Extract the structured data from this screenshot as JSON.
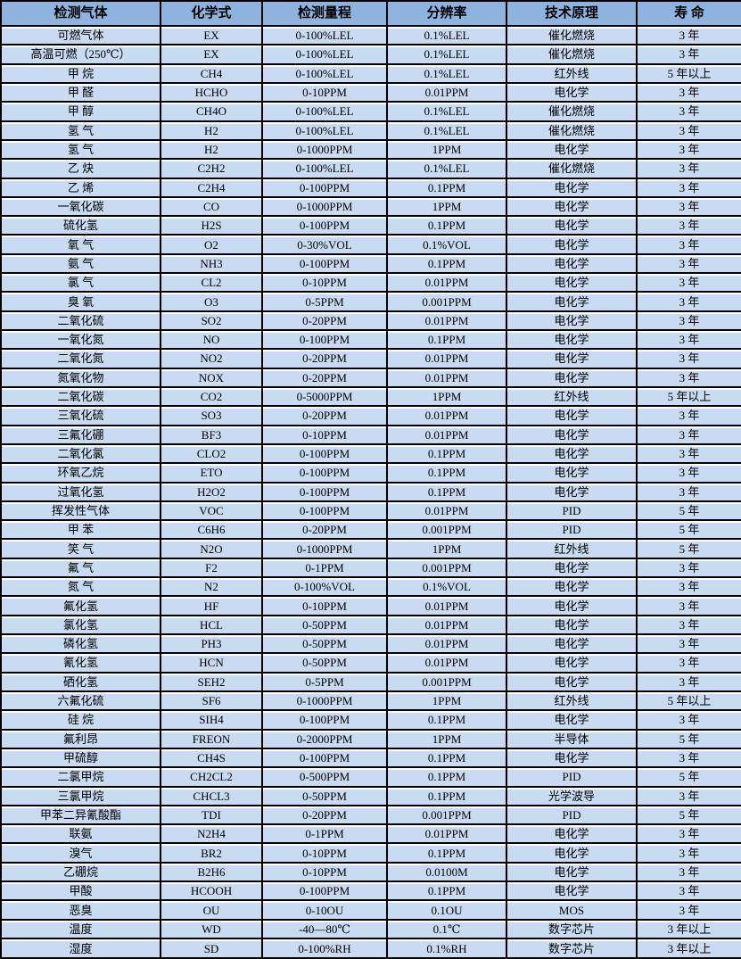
{
  "colors": {
    "border": "#000000",
    "header_bg": "#8FB3DF",
    "row_bg": "#C9DBF2",
    "gridline_gap": "#FFFFFF",
    "text": "#000000"
  },
  "table": {
    "column_keys": [
      "gas",
      "formula",
      "range",
      "resolution",
      "principle",
      "lifespan"
    ],
    "columns": [
      "检测气体",
      "化学式",
      "检测量程",
      "分辨率",
      "技术原理",
      "寿 命"
    ],
    "rows": [
      [
        "可燃气体",
        "EX",
        "0-100%LEL",
        "0.1%LEL",
        "催化燃烧",
        "3 年"
      ],
      [
        "高温可燃（250℃）",
        "EX",
        "0-100%LEL",
        "0.1%LEL",
        "催化燃烧",
        "3 年"
      ],
      [
        "甲 烷",
        "CH4",
        "0-100%LEL",
        "0.1%LEL",
        "红外线",
        "5 年以上"
      ],
      [
        "甲 醛",
        "HCHO",
        "0-10PPM",
        "0.01PPM",
        "电化学",
        "3 年"
      ],
      [
        "甲 醇",
        "CH4O",
        "0-100%LEL",
        "0.1%LEL",
        "催化燃烧",
        "3 年"
      ],
      [
        "氢 气",
        "H2",
        "0-100%LEL",
        "0.1%LEL",
        "催化燃烧",
        "3 年"
      ],
      [
        "氢 气",
        "H2",
        "0-1000PPM",
        "1PPM",
        "电化学",
        "3 年"
      ],
      [
        "乙 炔",
        "C2H2",
        "0-100%LEL",
        "0.1%LEL",
        "催化燃烧",
        "3 年"
      ],
      [
        "乙 烯",
        "C2H4",
        "0-100PPM",
        "0.1PPM",
        "电化学",
        "3 年"
      ],
      [
        "一氧化碳",
        "CO",
        "0-1000PPM",
        "1PPM",
        "电化学",
        "3 年"
      ],
      [
        "硫化氢",
        "H2S",
        "0-100PPM",
        "0.1PPM",
        "电化学",
        "3 年"
      ],
      [
        "氧 气",
        "O2",
        "0-30%VOL",
        "0.1%VOL",
        "电化学",
        "3 年"
      ],
      [
        "氨 气",
        "NH3",
        "0-100PPM",
        "0.1PPM",
        "电化学",
        "3 年"
      ],
      [
        "氯 气",
        "CL2",
        "0-10PPM",
        "0.01PPM",
        "电化学",
        "3 年"
      ],
      [
        "臭 氧",
        "O3",
        "0-5PPM",
        "0.001PPM",
        "电化学",
        "3 年"
      ],
      [
        "二氧化硫",
        "SO2",
        "0-20PPM",
        "0.01PPM",
        "电化学",
        "3 年"
      ],
      [
        "一氧化氮",
        "NO",
        "0-100PPM",
        "0.1PPM",
        "电化学",
        "3 年"
      ],
      [
        "二氧化氮",
        "NO2",
        "0-20PPM",
        "0.01PPM",
        "电化学",
        "3 年"
      ],
      [
        "氮氧化物",
        "NOX",
        "0-20PPM",
        "0.01PPM",
        "电化学",
        "3 年"
      ],
      [
        "二氧化碳",
        "CO2",
        "0-5000PPM",
        "1PPM",
        "红外线",
        "5 年以上"
      ],
      [
        "三氧化硫",
        "SO3",
        "0-20PPM",
        "0.01PPM",
        "电化学",
        "3 年"
      ],
      [
        "三氟化硼",
        "BF3",
        "0-10PPM",
        "0.01PPM",
        "电化学",
        "3 年"
      ],
      [
        "二氧化氯",
        "CLO2",
        "0-100PPM",
        "0.1PPM",
        "电化学",
        "3 年"
      ],
      [
        "环氧乙烷",
        "ETO",
        "0-100PPM",
        "0.1PPM",
        "电化学",
        "3 年"
      ],
      [
        "过氧化氢",
        "H2O2",
        "0-100PPM",
        "0.1PPM",
        "电化学",
        "3 年"
      ],
      [
        "挥发性气体",
        "VOC",
        "0-100PPM",
        "0.01PPM",
        "PID",
        "5 年"
      ],
      [
        "甲 苯",
        "C6H6",
        "0-20PPM",
        "0.001PPM",
        "PID",
        "5 年"
      ],
      [
        "笑 气",
        "N2O",
        "0-1000PPM",
        "1PPM",
        "红外线",
        "5 年"
      ],
      [
        "氟 气",
        "F2",
        "0-1PPM",
        "0.001PPM",
        "电化学",
        "3 年"
      ],
      [
        "氮 气",
        "N2",
        "0-100%VOL",
        "0.1%VOL",
        "电化学",
        "3 年"
      ],
      [
        "氟化氢",
        "HF",
        "0-10PPM",
        "0.01PPM",
        "电化学",
        "3 年"
      ],
      [
        "氯化氢",
        "HCL",
        "0-50PPM",
        "0.01PPM",
        "电化学",
        "3 年"
      ],
      [
        "磷化氢",
        "PH3",
        "0-50PPM",
        "0.01PPM",
        "电化学",
        "3 年"
      ],
      [
        "氰化氢",
        "HCN",
        "0-50PPM",
        "0.01PPM",
        "电化学",
        "3 年"
      ],
      [
        "硒化氢",
        "SEH2",
        "0-5PPM",
        "0.001PPM",
        "电化学",
        "3 年"
      ],
      [
        "六氟化硫",
        "SF6",
        "0-1000PPM",
        "1PPM",
        "红外线",
        "5 年以上"
      ],
      [
        "硅 烷",
        "SIH4",
        "0-100PPM",
        "0.1PPM",
        "电化学",
        "3 年"
      ],
      [
        "氟利昂",
        "FREON",
        "0-2000PPM",
        "1PPM",
        "半导体",
        "5 年"
      ],
      [
        "甲硫醇",
        "CH4S",
        "0-100PPM",
        "0.1PPM",
        "电化学",
        "3 年"
      ],
      [
        "二氯甲烷",
        "CH2CL2",
        "0-500PPM",
        "0.1PPM",
        "PID",
        "5 年"
      ],
      [
        "三氯甲烷",
        "CHCL3",
        "0-50PPM",
        "0.1PPM",
        "光学波导",
        "3 年"
      ],
      [
        "甲苯二异氰酸酯",
        "TDI",
        "0-20PPM",
        "0.001PPM",
        "PID",
        "5 年"
      ],
      [
        "联氨",
        "N2H4",
        "0-1PPM",
        "0.01PPM",
        "电化学",
        "3 年"
      ],
      [
        "溴气",
        "BR2",
        "0-10PPM",
        "0.1PPM",
        "电化学",
        "3 年"
      ],
      [
        "乙硼烷",
        "B2H6",
        "0-10PPM",
        "0.0100M",
        "电化学",
        "3 年"
      ],
      [
        "甲酸",
        "HCOOH",
        "0-100PPM",
        "0.1PPM",
        "电化学",
        "3 年"
      ],
      [
        "恶臭",
        "OU",
        "0-10OU",
        "0.1OU",
        "MOS",
        "3 年"
      ],
      [
        "温度",
        "WD",
        "-40—80℃",
        "0.1℃",
        "数字芯片",
        "3 年以上"
      ],
      [
        "湿度",
        "SD",
        "0-100%RH",
        "0.1%RH",
        "数字芯片",
        "3 年以上"
      ]
    ]
  }
}
